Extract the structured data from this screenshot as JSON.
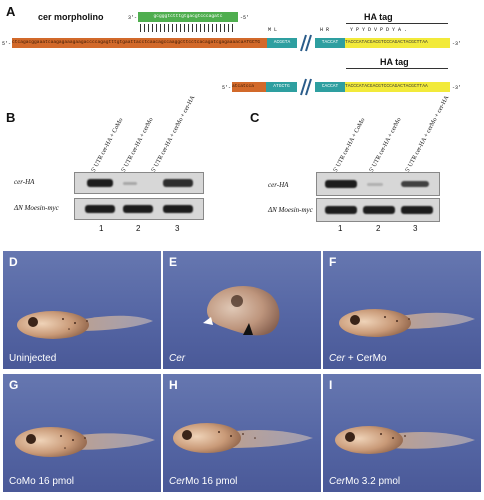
{
  "panel_a": {
    "letter": "A",
    "morpholino_label": "cer morpholino",
    "mo_prime_3": "3'-",
    "mo_sequence": "gcgggtctttgtgacgtcccagatc",
    "mo_prime_5": "-5'",
    "prime_5": "5'-",
    "prime_3": "-3'",
    "utr_sequence": "ctcagacggaaatcaagagaaagaagaccccagagtttgtgaattacctcaacagccaaggcttcctcacagatcgagaaaacaATGCTG",
    "teal_seq": "ACGGTA",
    "teal2_seq": "TACCAT",
    "ha_sequence": "TACCCATACGACGTCCCAGACTACGCTTAA",
    "aa_left": "M   L",
    "aa_mid": "H   R",
    "aa_ha": "Y   P   Y   D   V   P   D   Y   A   .",
    "ha_tag": "HA tag",
    "mut_utr": "atcatcca",
    "mut_teal": "ATGCTG",
    "mut_teal2": "CACCAT",
    "mut_ha": "TACCCATACGACGTCCCAGACTACGCTTAA"
  },
  "blots": [
    {
      "letter": "B",
      "columns": [
        "5' UTR cer-HA + CoMo",
        "5' UTR cer-HA + cerMo",
        "5' UTR cer-HA + cerMo + cer-HA"
      ],
      "rows": [
        "cer-HA",
        "ΔN Moesin-myc"
      ],
      "lanes": [
        "1",
        "2",
        "3"
      ]
    },
    {
      "letter": "C",
      "columns": [
        "5' UTR cer-HA + CoMo",
        "5' UTR cer-HA + cerMo",
        "5' UTR cer-HA + cerMo + cer-HA"
      ],
      "rows": [
        "cer-HA",
        "ΔN Moesin-myc"
      ],
      "lanes": [
        "1",
        "2",
        "3"
      ]
    }
  ],
  "embryos": [
    {
      "letter": "D",
      "caption_pre": "Uninjected",
      "caption_italic": "",
      "caption_post": ""
    },
    {
      "letter": "E",
      "caption_pre": "",
      "caption_italic": "Cer",
      "caption_post": ""
    },
    {
      "letter": "F",
      "caption_pre": "",
      "caption_italic": "Cer",
      "caption_post": " + CerMo"
    },
    {
      "letter": "G",
      "caption_pre": "CoMo 16 pmol",
      "caption_italic": "",
      "caption_post": ""
    },
    {
      "letter": "H",
      "caption_pre": "",
      "caption_italic": "Cer",
      "caption_post": "Mo 16 pmol"
    },
    {
      "letter": "I",
      "caption_pre": "",
      "caption_italic": "Cer",
      "caption_post": "Mo 3.2 pmol"
    }
  ],
  "colors": {
    "utr": "#d2692a",
    "mo": "#4fae4f",
    "teal": "#2e9fa0",
    "ha": "#f2ea3a",
    "background": "#5566a4"
  }
}
